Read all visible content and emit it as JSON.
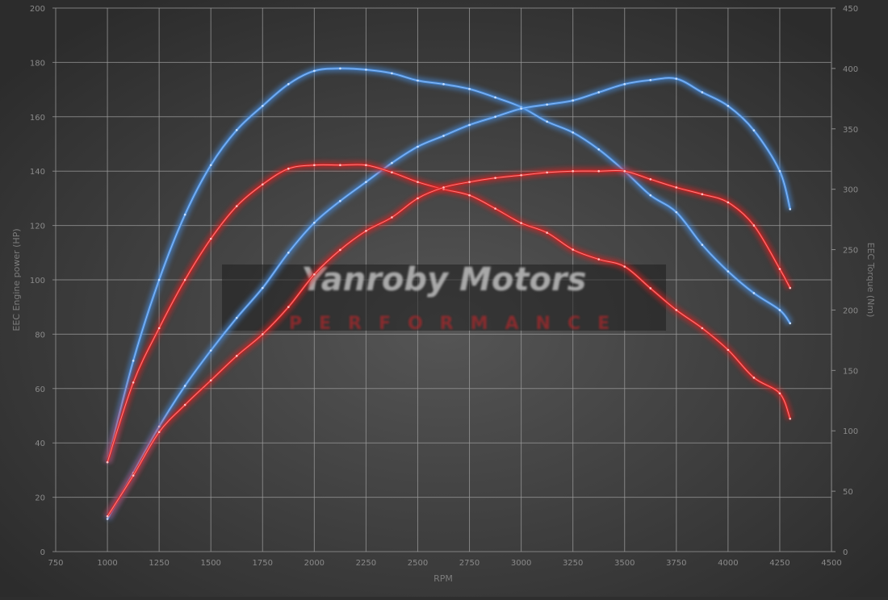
{
  "chart_data": {
    "type": "line",
    "title": "",
    "xlabel": "RPM",
    "ylabel": "EEC Engine power (HP)",
    "y2label": "EEC Torque (Nm)",
    "xlim": [
      750,
      4500
    ],
    "ylim": [
      0,
      200
    ],
    "y2lim": [
      0,
      450
    ],
    "grid": true,
    "legend": "none",
    "xticks": [
      "750",
      "1000",
      "1250",
      "1500",
      "1750",
      "2000",
      "2250",
      "2500",
      "2750",
      "3000",
      "3250",
      "3500",
      "3750",
      "4000",
      "4250",
      "4500"
    ],
    "yticks": [
      "0",
      "20",
      "40",
      "60",
      "80",
      "100",
      "120",
      "140",
      "160",
      "180",
      "200"
    ],
    "y2ticks": [
      "0",
      "50",
      "100",
      "150",
      "200",
      "250",
      "300",
      "350",
      "400",
      "450"
    ],
    "x": [
      1000,
      1125,
      1250,
      1375,
      1500,
      1625,
      1750,
      1875,
      2000,
      2125,
      2250,
      2375,
      2500,
      2625,
      2750,
      2875,
      3000,
      3125,
      3250,
      3375,
      3500,
      3625,
      3750,
      3875,
      4000,
      4125,
      4250,
      4300
    ],
    "series": [
      {
        "axis": "right",
        "color": "#4a90e2",
        "values": [
          74,
          158,
          225,
          279,
          320,
          349,
          369,
          387,
          398,
          400,
          399,
          396,
          390,
          387,
          383,
          376,
          368,
          356,
          347,
          333,
          315,
          295,
          281,
          254,
          232,
          214,
          200,
          189
        ]
      },
      {
        "axis": "left",
        "color": "#4a90e2",
        "values": [
          12,
          29,
          46,
          61,
          74,
          86,
          97,
          110,
          121,
          129,
          136,
          143,
          149,
          153,
          157,
          160,
          163,
          164.5,
          166,
          169,
          172,
          173.5,
          174,
          169,
          164,
          155,
          140,
          126
        ]
      },
      {
        "axis": "right",
        "color": "#e02020",
        "values": [
          74,
          140,
          185,
          225,
          259,
          286,
          304,
          317,
          320,
          320,
          320,
          314,
          306,
          300,
          295,
          284,
          272,
          264,
          250,
          242,
          236,
          218,
          200,
          185,
          167,
          144,
          131,
          110
        ]
      },
      {
        "axis": "left",
        "color": "#e02020",
        "values": [
          13,
          28,
          44,
          54,
          63,
          72,
          80,
          90,
          102,
          111,
          118,
          123,
          130,
          134,
          136,
          137.5,
          138.5,
          139.5,
          140,
          140,
          140,
          137,
          134,
          131.5,
          128.5,
          120,
          104,
          97
        ]
      }
    ]
  },
  "watermark": {
    "brand": "Yanroby Motors",
    "tagline": "PERFORMANCE"
  }
}
